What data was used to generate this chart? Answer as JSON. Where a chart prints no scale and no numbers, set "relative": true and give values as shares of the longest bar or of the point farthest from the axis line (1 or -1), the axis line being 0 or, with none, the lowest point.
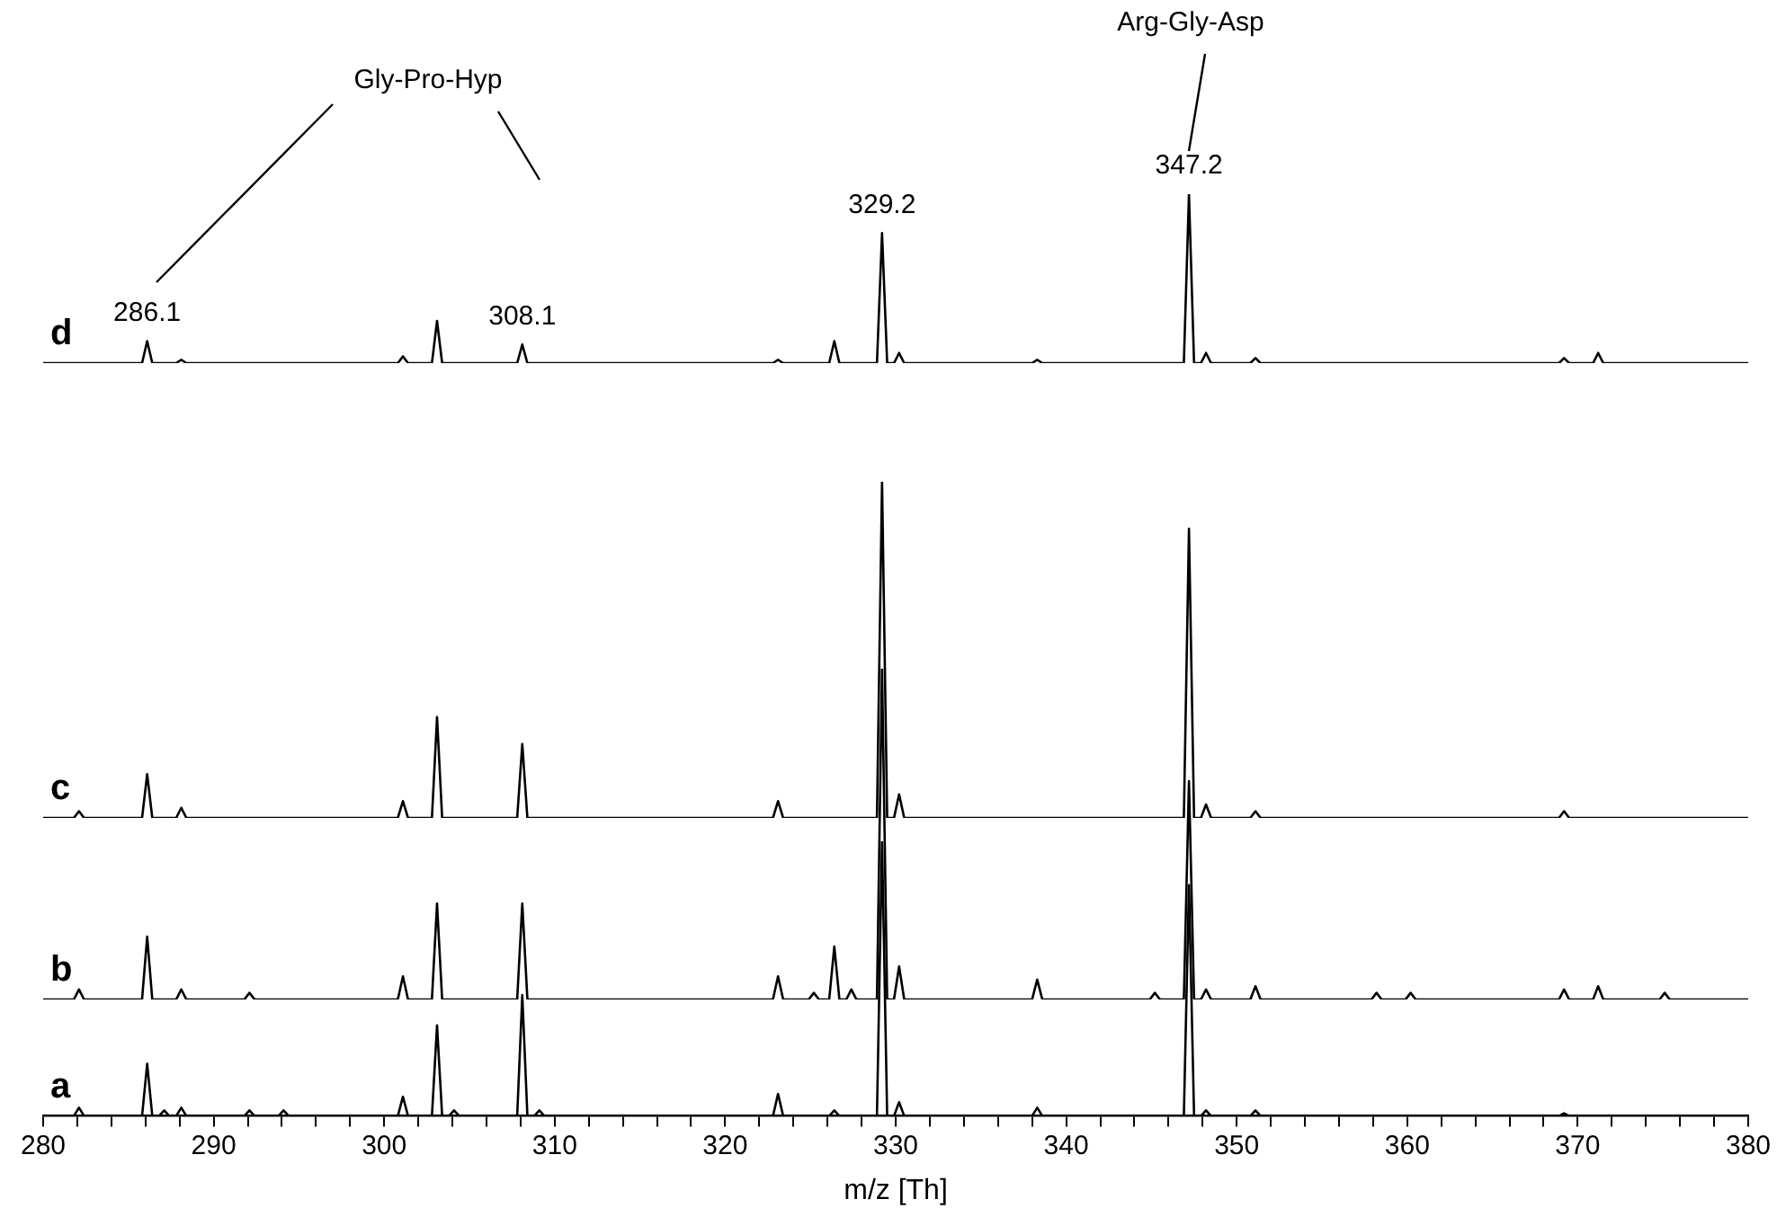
{
  "chart_data": [
    {
      "type": "line",
      "ylabel": "d",
      "relative": true,
      "xlim": [
        280,
        380
      ],
      "tick_labels": false,
      "x": [
        280,
        285.8,
        286.1,
        286.4,
        287.8,
        288.1,
        288.4,
        300.8,
        301.1,
        301.4,
        302.8,
        303.1,
        303.4,
        307.8,
        308.1,
        308.4,
        322.8,
        323.1,
        323.4,
        326.1,
        326.4,
        326.7,
        328.9,
        329.2,
        329.5,
        329.9,
        330.2,
        330.5,
        338,
        338.3,
        338.6,
        346.9,
        347.2,
        347.5,
        347.9,
        348.2,
        348.5,
        350.8,
        351.1,
        351.4,
        368.9,
        369.2,
        369.5,
        370.9,
        371.2,
        371.5,
        380
      ],
      "series": [
        {
          "color": "#000000",
          "values": [
            0,
            0,
            0.13,
            0,
            0,
            0.02,
            0,
            0,
            0.04,
            0,
            0,
            0.25,
            0,
            0,
            0.11,
            0,
            0,
            0.02,
            0,
            0,
            0.13,
            0,
            0,
            0.77,
            0,
            0,
            0.06,
            0,
            0,
            0.02,
            0,
            0,
            1,
            0,
            0,
            0.06,
            0,
            0,
            0.03,
            0,
            0,
            0.03,
            0,
            0,
            0.06,
            0,
            0
          ]
        }
      ],
      "annotations": [
        {
          "text": "286.1",
          "x": 286.1,
          "y": 0.13
        },
        {
          "text": "308.1",
          "x": 308.1,
          "y": 0.11
        },
        {
          "text": "329.2",
          "x": 329.2,
          "y": 0.77
        },
        {
          "text": "347.2",
          "x": 347.2,
          "y": 1
        },
        "Gly-Pro-Hyp",
        "Arg-Gly-Asp"
      ]
    },
    {
      "type": "line",
      "ylabel": "c",
      "relative": true,
      "xlim": [
        280,
        380
      ],
      "tick_labels": false,
      "x": [
        280,
        281.8,
        282.1,
        282.4,
        285.8,
        286.1,
        286.4,
        287.8,
        288.1,
        288.4,
        300.8,
        301.1,
        301.4,
        302.8,
        303.1,
        303.4,
        307.8,
        308.1,
        308.4,
        322.8,
        323.1,
        323.4,
        328.9,
        329.2,
        329.5,
        329.9,
        330.2,
        330.5,
        346.9,
        347.2,
        347.5,
        347.9,
        348.2,
        348.5,
        350.8,
        351.1,
        351.4,
        368.9,
        369.2,
        369.5,
        380
      ],
      "series": [
        {
          "color": "#000000",
          "values": [
            0,
            0,
            0.02,
            0,
            0,
            0.13,
            0,
            0,
            0.03,
            0,
            0,
            0.05,
            0,
            0,
            0.3,
            0,
            0,
            0.22,
            0,
            0,
            0.05,
            0,
            0,
            1,
            0,
            0,
            0.07,
            0,
            0,
            0.86,
            0,
            0,
            0.04,
            0,
            0,
            0.02,
            0,
            0,
            0.02,
            0,
            0
          ]
        }
      ]
    },
    {
      "type": "line",
      "ylabel": "b",
      "relative": true,
      "xlim": [
        280,
        380
      ],
      "tick_labels": false,
      "x": [
        280,
        281.8,
        282.1,
        282.4,
        285.8,
        286.1,
        286.4,
        287.8,
        288.1,
        288.4,
        291.8,
        292.1,
        292.4,
        300.8,
        301.1,
        301.4,
        302.8,
        303.1,
        303.4,
        307.8,
        308.1,
        308.4,
        322.8,
        323.1,
        323.4,
        324.9,
        325.2,
        325.5,
        326.1,
        326.4,
        326.7,
        327.1,
        327.4,
        327.7,
        328.9,
        329.2,
        329.5,
        329.9,
        330.2,
        330.5,
        338,
        338.3,
        338.6,
        344.9,
        345.2,
        345.5,
        346.9,
        347.2,
        347.5,
        347.9,
        348.2,
        348.5,
        350.8,
        351.1,
        351.4,
        357.9,
        358.2,
        358.5,
        359.9,
        360.2,
        360.5,
        368.9,
        369.2,
        369.5,
        370.9,
        371.2,
        371.5,
        374.8,
        375.1,
        375.4,
        380
      ],
      "series": [
        {
          "color": "#000000",
          "values": [
            0,
            0,
            0.03,
            0,
            0,
            0.19,
            0,
            0,
            0.03,
            0,
            0,
            0.02,
            0,
            0,
            0.07,
            0,
            0,
            0.29,
            0,
            0,
            0.29,
            0,
            0,
            0.07,
            0,
            0,
            0.02,
            0,
            0,
            0.16,
            0,
            0,
            0.03,
            0,
            0,
            1,
            0,
            0,
            0.1,
            0,
            0,
            0.06,
            0,
            0,
            0.02,
            0,
            0,
            0.66,
            0,
            0,
            0.03,
            0,
            0,
            0.04,
            0,
            0,
            0.02,
            0,
            0,
            0.02,
            0,
            0,
            0.03,
            0,
            0,
            0.04,
            0,
            0,
            0.02,
            0,
            0
          ]
        }
      ]
    },
    {
      "type": "line",
      "ylabel": "a",
      "relative": true,
      "xlim": [
        280,
        380
      ],
      "xlabel": "m/z [Th]",
      "xticks": [
        280,
        {
          "value": 282,
          "label": null
        },
        {
          "value": 284,
          "label": null
        },
        {
          "value": 286,
          "label": null
        },
        {
          "value": 288,
          "label": null
        },
        290,
        {
          "value": 292,
          "label": null
        },
        {
          "value": 294,
          "label": null
        },
        {
          "value": 296,
          "label": null
        },
        {
          "value": 298,
          "label": null
        },
        300,
        {
          "value": 302,
          "label": null
        },
        {
          "value": 304,
          "label": null
        },
        {
          "value": 306,
          "label": null
        },
        {
          "value": 308,
          "label": null
        },
        310,
        {
          "value": 312,
          "label": null
        },
        {
          "value": 314,
          "label": null
        },
        {
          "value": 316,
          "label": null
        },
        {
          "value": 318,
          "label": null
        },
        320,
        {
          "value": 322,
          "label": null
        },
        {
          "value": 324,
          "label": null
        },
        {
          "value": 326,
          "label": null
        },
        {
          "value": 328,
          "label": null
        },
        330,
        {
          "value": 332,
          "label": null
        },
        {
          "value": 334,
          "label": null
        },
        {
          "value": 336,
          "label": null
        },
        {
          "value": 338,
          "label": null
        },
        340,
        {
          "value": 342,
          "label": null
        },
        {
          "value": 344,
          "label": null
        },
        {
          "value": 346,
          "label": null
        },
        {
          "value": 348,
          "label": null
        },
        350,
        {
          "value": 352,
          "label": null
        },
        {
          "value": 354,
          "label": null
        },
        {
          "value": 356,
          "label": null
        },
        {
          "value": 358,
          "label": null
        },
        360,
        {
          "value": 362,
          "label": null
        },
        {
          "value": 364,
          "label": null
        },
        {
          "value": 366,
          "label": null
        },
        {
          "value": 368,
          "label": null
        },
        370,
        {
          "value": 372,
          "label": null
        },
        {
          "value": 374,
          "label": null
        },
        {
          "value": 376,
          "label": null
        },
        {
          "value": 378,
          "label": null
        },
        380
      ],
      "x": [
        280,
        281.8,
        282.1,
        282.4,
        285.8,
        286.1,
        286.4,
        286.8,
        287.1,
        287.4,
        287.8,
        288.1,
        288.4,
        291.8,
        292.1,
        292.4,
        293.8,
        294.1,
        294.4,
        300.8,
        301.1,
        301.4,
        302.8,
        303.1,
        303.4,
        303.8,
        304.1,
        304.4,
        307.8,
        308.1,
        308.4,
        308.8,
        309.1,
        309.4,
        322.8,
        323.1,
        323.4,
        326.1,
        326.4,
        326.7,
        328.9,
        329.2,
        329.5,
        329.9,
        330.2,
        330.5,
        338,
        338.3,
        338.6,
        346.9,
        347.2,
        347.5,
        347.9,
        348.2,
        348.5,
        350.8,
        351.1,
        351.4,
        368.9,
        369.2,
        369.5,
        380
      ],
      "series": [
        {
          "color": "#000000",
          "values": [
            0,
            0,
            0.03,
            0,
            0,
            0.19,
            0,
            0,
            0.02,
            0,
            0,
            0.03,
            0,
            0,
            0.02,
            0,
            0,
            0.02,
            0,
            0,
            0.07,
            0,
            0,
            0.33,
            0,
            0,
            0.02,
            0,
            0,
            0.44,
            0,
            0,
            0.02,
            0,
            0,
            0.08,
            0,
            0,
            0.02,
            0,
            0,
            1,
            0,
            0,
            0.05,
            0,
            0,
            0.03,
            0,
            0,
            0.84,
            0,
            0,
            0.02,
            0,
            0,
            0.02,
            0,
            0,
            0.01,
            0,
            0
          ]
        }
      ]
    }
  ]
}
